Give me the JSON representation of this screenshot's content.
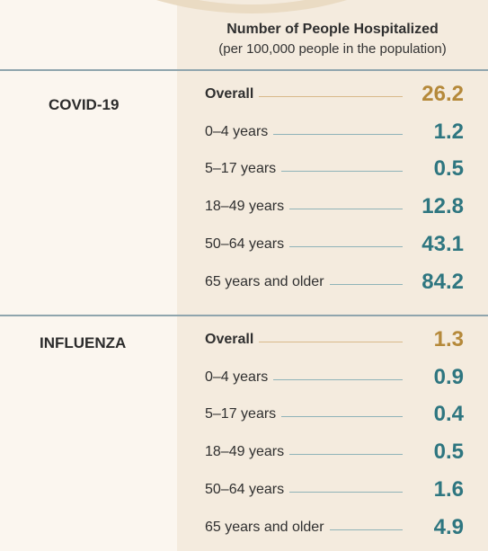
{
  "header": {
    "title": "Number of People Hospitalized",
    "subtitle": "(per 100,000 people in the population)"
  },
  "colors": {
    "overall_value": "#b5893a",
    "age_value": "#2e7680",
    "overall_line": "#d8b98a",
    "age_line": "#8fb3b8",
    "divider": "#8fa5ad"
  },
  "sections": [
    {
      "name": "COVID-19",
      "rows": [
        {
          "label": "Overall",
          "value": "26.2",
          "kind": "overall"
        },
        {
          "label": "0–4 years",
          "value": "1.2",
          "kind": "age"
        },
        {
          "label": "5–17 years",
          "value": "0.5",
          "kind": "age"
        },
        {
          "label": "18–49 years",
          "value": "12.8",
          "kind": "age"
        },
        {
          "label": "50–64 years",
          "value": "43.1",
          "kind": "age"
        },
        {
          "label": "65 years and older",
          "value": "84.2",
          "kind": "age"
        }
      ]
    },
    {
      "name": "INFLUENZA",
      "rows": [
        {
          "label": "Overall",
          "value": "1.3",
          "kind": "overall"
        },
        {
          "label": "0–4 years",
          "value": "0.9",
          "kind": "age"
        },
        {
          "label": "5–17 years",
          "value": "0.4",
          "kind": "age"
        },
        {
          "label": "18–49 years",
          "value": "0.5",
          "kind": "age"
        },
        {
          "label": "50–64 years",
          "value": "1.6",
          "kind": "age"
        },
        {
          "label": "65 years and older",
          "value": "4.9",
          "kind": "age"
        }
      ]
    }
  ]
}
